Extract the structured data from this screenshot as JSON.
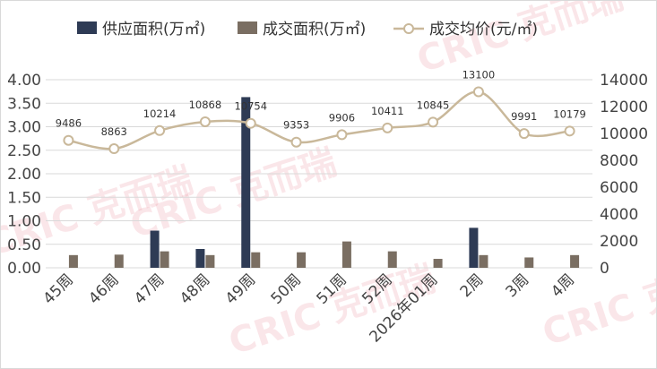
{
  "chart_data": {
    "type": "bar+line",
    "categories": [
      "45周",
      "46周",
      "47周",
      "48周",
      "49周",
      "50周",
      "51周",
      "52周",
      "2026年01周",
      "2周",
      "3周",
      "4周"
    ],
    "series": [
      {
        "name": "供应面积(万㎡)",
        "type": "bar",
        "axis": "left",
        "color": "#2e3b55",
        "values": [
          0,
          0,
          0.79,
          0.4,
          3.63,
          0,
          0,
          0,
          0,
          0.85,
          0,
          0
        ]
      },
      {
        "name": "成交面积(万㎡)",
        "type": "bar",
        "axis": "left",
        "color": "#7a6e62",
        "values": [
          0.27,
          0.28,
          0.35,
          0.27,
          0.33,
          0.33,
          0.56,
          0.35,
          0.19,
          0.27,
          0.22,
          0.27
        ]
      },
      {
        "name": "成交均价(元/㎡)",
        "type": "line",
        "axis": "right",
        "color": "#c9b89a",
        "values": [
          9486,
          8863,
          10214,
          10868,
          10754,
          9353,
          9906,
          10411,
          10845,
          13100,
          9991,
          10179
        ]
      }
    ],
    "y_left": {
      "min": 0,
      "max": 4,
      "ticks": [
        "0.00",
        "0.50",
        "1.00",
        "1.50",
        "2.00",
        "2.50",
        "3.00",
        "3.50",
        "4.00"
      ]
    },
    "y_right": {
      "min": 0,
      "max": 14000,
      "ticks": [
        "0",
        "2000",
        "4000",
        "6000",
        "8000",
        "10000",
        "12000",
        "14000"
      ]
    },
    "grid": "horizontal",
    "legend": "top"
  },
  "watermark": "CRIC 克而瑞"
}
